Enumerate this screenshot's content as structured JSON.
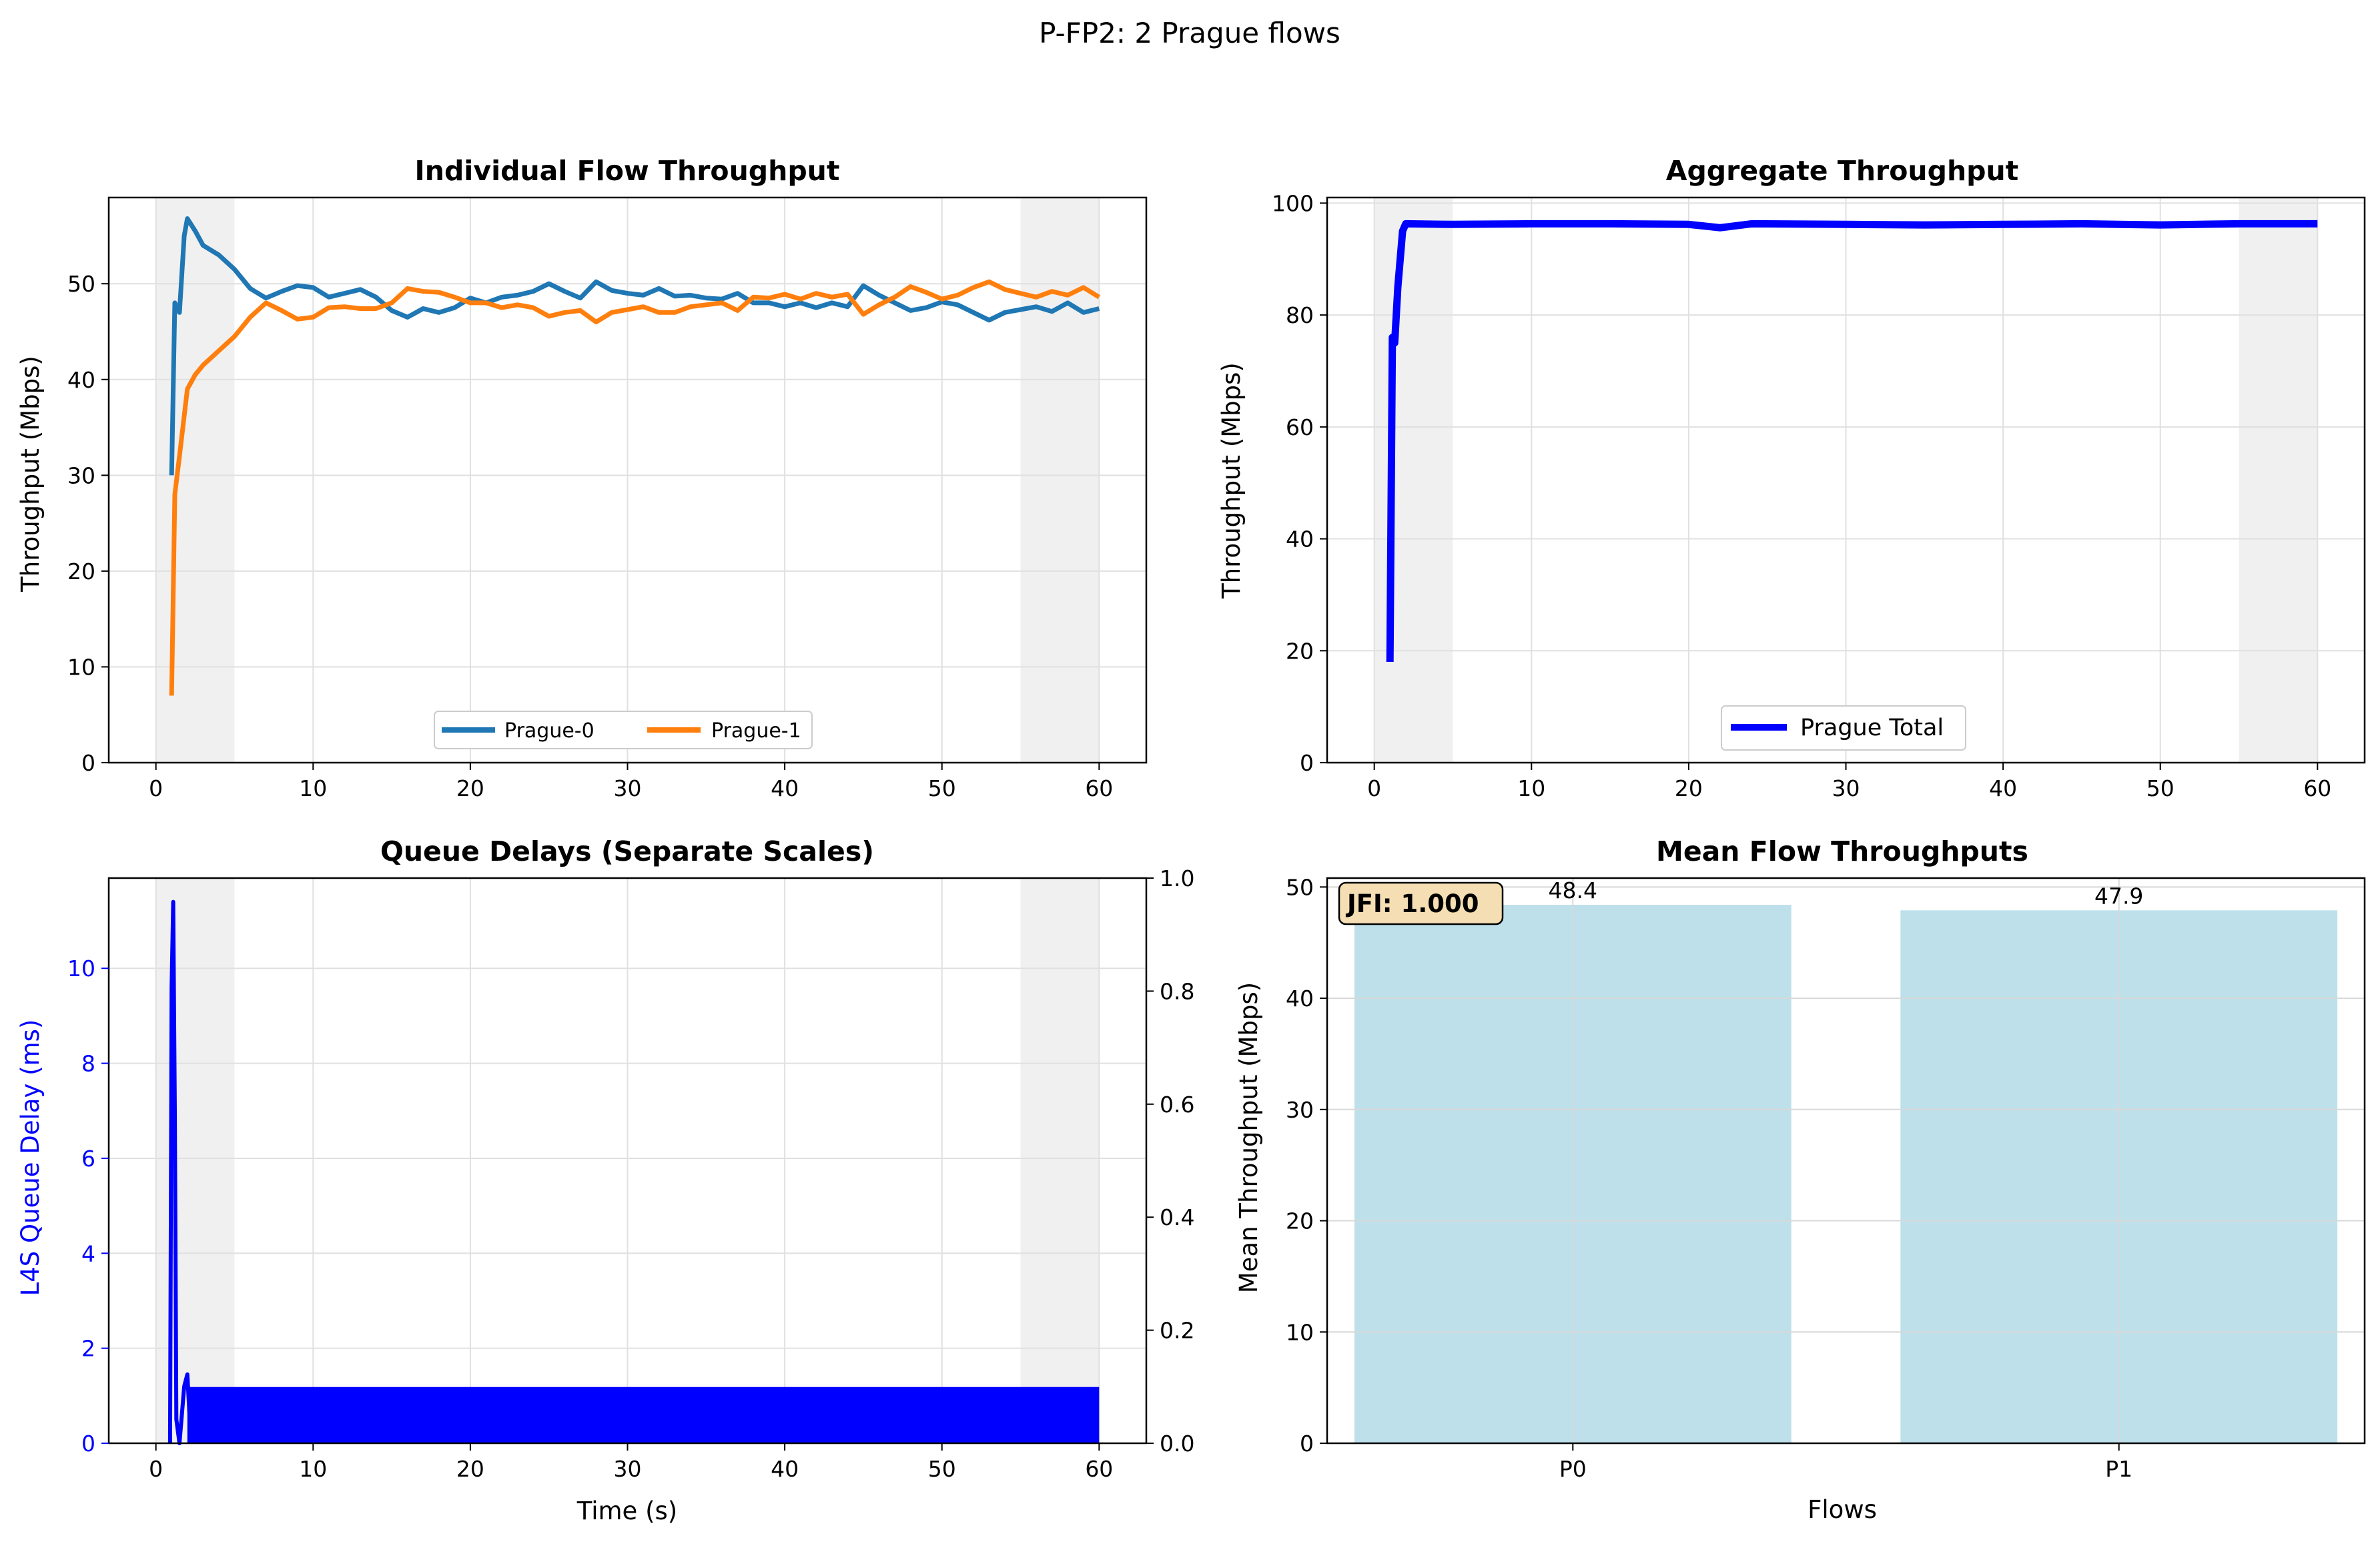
{
  "figure": {
    "suptitle": "P-FP2: 2 Prague flows"
  },
  "colors": {
    "prague0": "#1f77b4",
    "prague1": "#ff7f0e",
    "aggregate": "#0000ff",
    "l4s": "#0000ff",
    "bar": "#add8e6",
    "shade": "#f0f0f0",
    "grid": "#e0e0e0",
    "jfi_box": "#f5deb3"
  },
  "chart_data": [
    {
      "id": "individual",
      "type": "line",
      "title": "Individual Flow Throughput",
      "xlabel": "",
      "ylabel": "Throughput (Mbps)",
      "xlim": [
        -3,
        63
      ],
      "ylim": [
        0,
        59
      ],
      "xticks": [
        0,
        10,
        20,
        30,
        40,
        50,
        60
      ],
      "yticks": [
        0,
        10,
        20,
        30,
        40,
        50
      ],
      "grid": true,
      "shaded_regions": [
        [
          0,
          5
        ],
        [
          55,
          60
        ]
      ],
      "legend": {
        "placement": "lower-center",
        "ncol": 2
      },
      "series": [
        {
          "name": "Prague-0",
          "color": "#1f77b4",
          "points": [
            [
              1,
              30
            ],
            [
              1.2,
              48
            ],
            [
              1.5,
              47
            ],
            [
              1.8,
              55
            ],
            [
              2,
              56.8
            ],
            [
              2.5,
              55.5
            ],
            [
              3,
              54
            ],
            [
              4,
              53
            ],
            [
              5,
              51.5
            ],
            [
              6,
              49.5
            ],
            [
              7,
              48.5
            ],
            [
              8,
              49.2
            ],
            [
              9,
              49.8
            ],
            [
              10,
              49.6
            ],
            [
              11,
              48.6
            ],
            [
              12,
              49
            ],
            [
              13,
              49.4
            ],
            [
              14,
              48.6
            ],
            [
              15,
              47.2
            ],
            [
              16,
              46.5
            ],
            [
              17,
              47.4
            ],
            [
              18,
              47
            ],
            [
              19,
              47.5
            ],
            [
              20,
              48.5
            ],
            [
              21,
              48
            ],
            [
              22,
              48.6
            ],
            [
              23,
              48.8
            ],
            [
              24,
              49.2
            ],
            [
              25,
              50
            ],
            [
              26,
              49.2
            ],
            [
              27,
              48.5
            ],
            [
              28,
              50.2
            ],
            [
              29,
              49.3
            ],
            [
              30,
              49
            ],
            [
              31,
              48.8
            ],
            [
              32,
              49.5
            ],
            [
              33,
              48.7
            ],
            [
              34,
              48.8
            ],
            [
              35,
              48.5
            ],
            [
              36,
              48.4
            ],
            [
              37,
              49
            ],
            [
              38,
              48
            ],
            [
              39,
              48
            ],
            [
              40,
              47.6
            ],
            [
              41,
              48
            ],
            [
              42,
              47.5
            ],
            [
              43,
              48
            ],
            [
              44,
              47.6
            ],
            [
              45,
              49.8
            ],
            [
              46,
              48.8
            ],
            [
              47,
              48
            ],
            [
              48,
              47.2
            ],
            [
              49,
              47.5
            ],
            [
              50,
              48.1
            ],
            [
              51,
              47.8
            ],
            [
              52,
              47
            ],
            [
              53,
              46.2
            ],
            [
              54,
              47
            ],
            [
              55,
              47.3
            ],
            [
              56,
              47.6
            ],
            [
              57,
              47.1
            ],
            [
              58,
              48
            ],
            [
              59,
              47
            ],
            [
              60,
              47.4
            ]
          ]
        },
        {
          "name": "Prague-1",
          "color": "#ff7f0e",
          "points": [
            [
              1,
              7
            ],
            [
              1.2,
              28
            ],
            [
              1.5,
              32
            ],
            [
              2,
              39
            ],
            [
              2.5,
              40.5
            ],
            [
              3,
              41.5
            ],
            [
              4,
              43
            ],
            [
              5,
              44.5
            ],
            [
              6,
              46.5
            ],
            [
              7,
              48
            ],
            [
              8,
              47.2
            ],
            [
              9,
              46.3
            ],
            [
              10,
              46.5
            ],
            [
              11,
              47.5
            ],
            [
              12,
              47.6
            ],
            [
              13,
              47.4
            ],
            [
              14,
              47.4
            ],
            [
              15,
              48
            ],
            [
              16,
              49.5
            ],
            [
              17,
              49.2
            ],
            [
              18,
              49.1
            ],
            [
              19,
              48.6
            ],
            [
              20,
              48
            ],
            [
              21,
              48
            ],
            [
              22,
              47.5
            ],
            [
              23,
              47.8
            ],
            [
              24,
              47.5
            ],
            [
              25,
              46.6
            ],
            [
              26,
              47
            ],
            [
              27,
              47.2
            ],
            [
              28,
              46
            ],
            [
              29,
              47
            ],
            [
              30,
              47.3
            ],
            [
              31,
              47.6
            ],
            [
              32,
              47
            ],
            [
              33,
              47
            ],
            [
              34,
              47.6
            ],
            [
              35,
              47.8
            ],
            [
              36,
              48
            ],
            [
              37,
              47.2
            ],
            [
              38,
              48.6
            ],
            [
              39,
              48.5
            ],
            [
              40,
              48.9
            ],
            [
              41,
              48.4
            ],
            [
              42,
              49
            ],
            [
              43,
              48.6
            ],
            [
              44,
              48.9
            ],
            [
              45,
              46.8
            ],
            [
              46,
              47.8
            ],
            [
              47,
              48.6
            ],
            [
              48,
              49.7
            ],
            [
              49,
              49.1
            ],
            [
              50,
              48.4
            ],
            [
              51,
              48.8
            ],
            [
              52,
              49.6
            ],
            [
              53,
              50.2
            ],
            [
              54,
              49.4
            ],
            [
              55,
              49
            ],
            [
              56,
              48.6
            ],
            [
              57,
              49.2
            ],
            [
              58,
              48.8
            ],
            [
              59,
              49.6
            ],
            [
              60,
              48.6
            ]
          ]
        }
      ]
    },
    {
      "id": "aggregate",
      "type": "line",
      "title": "Aggregate Throughput",
      "xlabel": "",
      "ylabel": "Throughput (Mbps)",
      "xlim": [
        -3,
        63
      ],
      "ylim": [
        0,
        101
      ],
      "xticks": [
        0,
        10,
        20,
        30,
        40,
        50,
        60
      ],
      "yticks": [
        0,
        20,
        40,
        60,
        80,
        100
      ],
      "grid": true,
      "shaded_regions": [
        [
          0,
          5
        ],
        [
          55,
          60
        ]
      ],
      "legend": {
        "placement": "lower-center",
        "ncol": 1
      },
      "series": [
        {
          "name": "Prague Total",
          "color": "#0000ff",
          "points": [
            [
              1,
              18
            ],
            [
              1.15,
              76
            ],
            [
              1.3,
              75
            ],
            [
              1.5,
              85
            ],
            [
              1.8,
              95
            ],
            [
              2,
              96.3
            ],
            [
              5,
              96.2
            ],
            [
              10,
              96.3
            ],
            [
              15,
              96.3
            ],
            [
              20,
              96.2
            ],
            [
              22,
              95.6
            ],
            [
              24,
              96.3
            ],
            [
              30,
              96.2
            ],
            [
              35,
              96.1
            ],
            [
              40,
              96.2
            ],
            [
              45,
              96.3
            ],
            [
              50,
              96.1
            ],
            [
              55,
              96.3
            ],
            [
              60,
              96.3
            ]
          ]
        }
      ]
    },
    {
      "id": "queue",
      "type": "line",
      "title": "Queue Delays (Separate Scales)",
      "xlabel": "Time (s)",
      "ylabel": "L4S Queue Delay (ms)",
      "y2lim": [
        0,
        1.0
      ],
      "y2ticks": [
        0.0,
        0.2,
        0.4,
        0.6,
        0.8,
        1.0
      ],
      "xlim": [
        -3,
        63
      ],
      "ylim": [
        0,
        11.9
      ],
      "xticks": [
        0,
        10,
        20,
        30,
        40,
        50,
        60
      ],
      "yticks": [
        0,
        2,
        4,
        6,
        8,
        10
      ],
      "grid": true,
      "shaded_regions": [
        [
          0,
          5
        ],
        [
          55,
          60
        ]
      ],
      "series": [
        {
          "name": "L4S",
          "color": "#0000ff",
          "spike": [
            [
              0.9,
              0
            ],
            [
              1.0,
              9.6
            ],
            [
              1.1,
              11.4
            ],
            [
              1.2,
              7
            ],
            [
              1.3,
              0.5
            ],
            [
              1.5,
              0
            ],
            [
              1.8,
              1.2
            ],
            [
              2,
              1.45
            ],
            [
              2.2,
              0.2
            ]
          ],
          "band": {
            "from": 2,
            "to": 60,
            "low": 0.0,
            "high": 1.1
          }
        }
      ]
    },
    {
      "id": "means",
      "type": "bar",
      "title": "Mean Flow Throughputs",
      "xlabel": "Flows",
      "ylabel": "Mean Throughput (Mbps)",
      "ylim": [
        0,
        50.8
      ],
      "yticks": [
        0,
        10,
        20,
        30,
        40,
        50
      ],
      "grid": true,
      "categories": [
        "P0",
        "P1"
      ],
      "values": [
        48.4,
        47.9
      ],
      "value_labels": [
        "48.4",
        "47.9"
      ],
      "annotation": "JFI: 1.000"
    }
  ]
}
